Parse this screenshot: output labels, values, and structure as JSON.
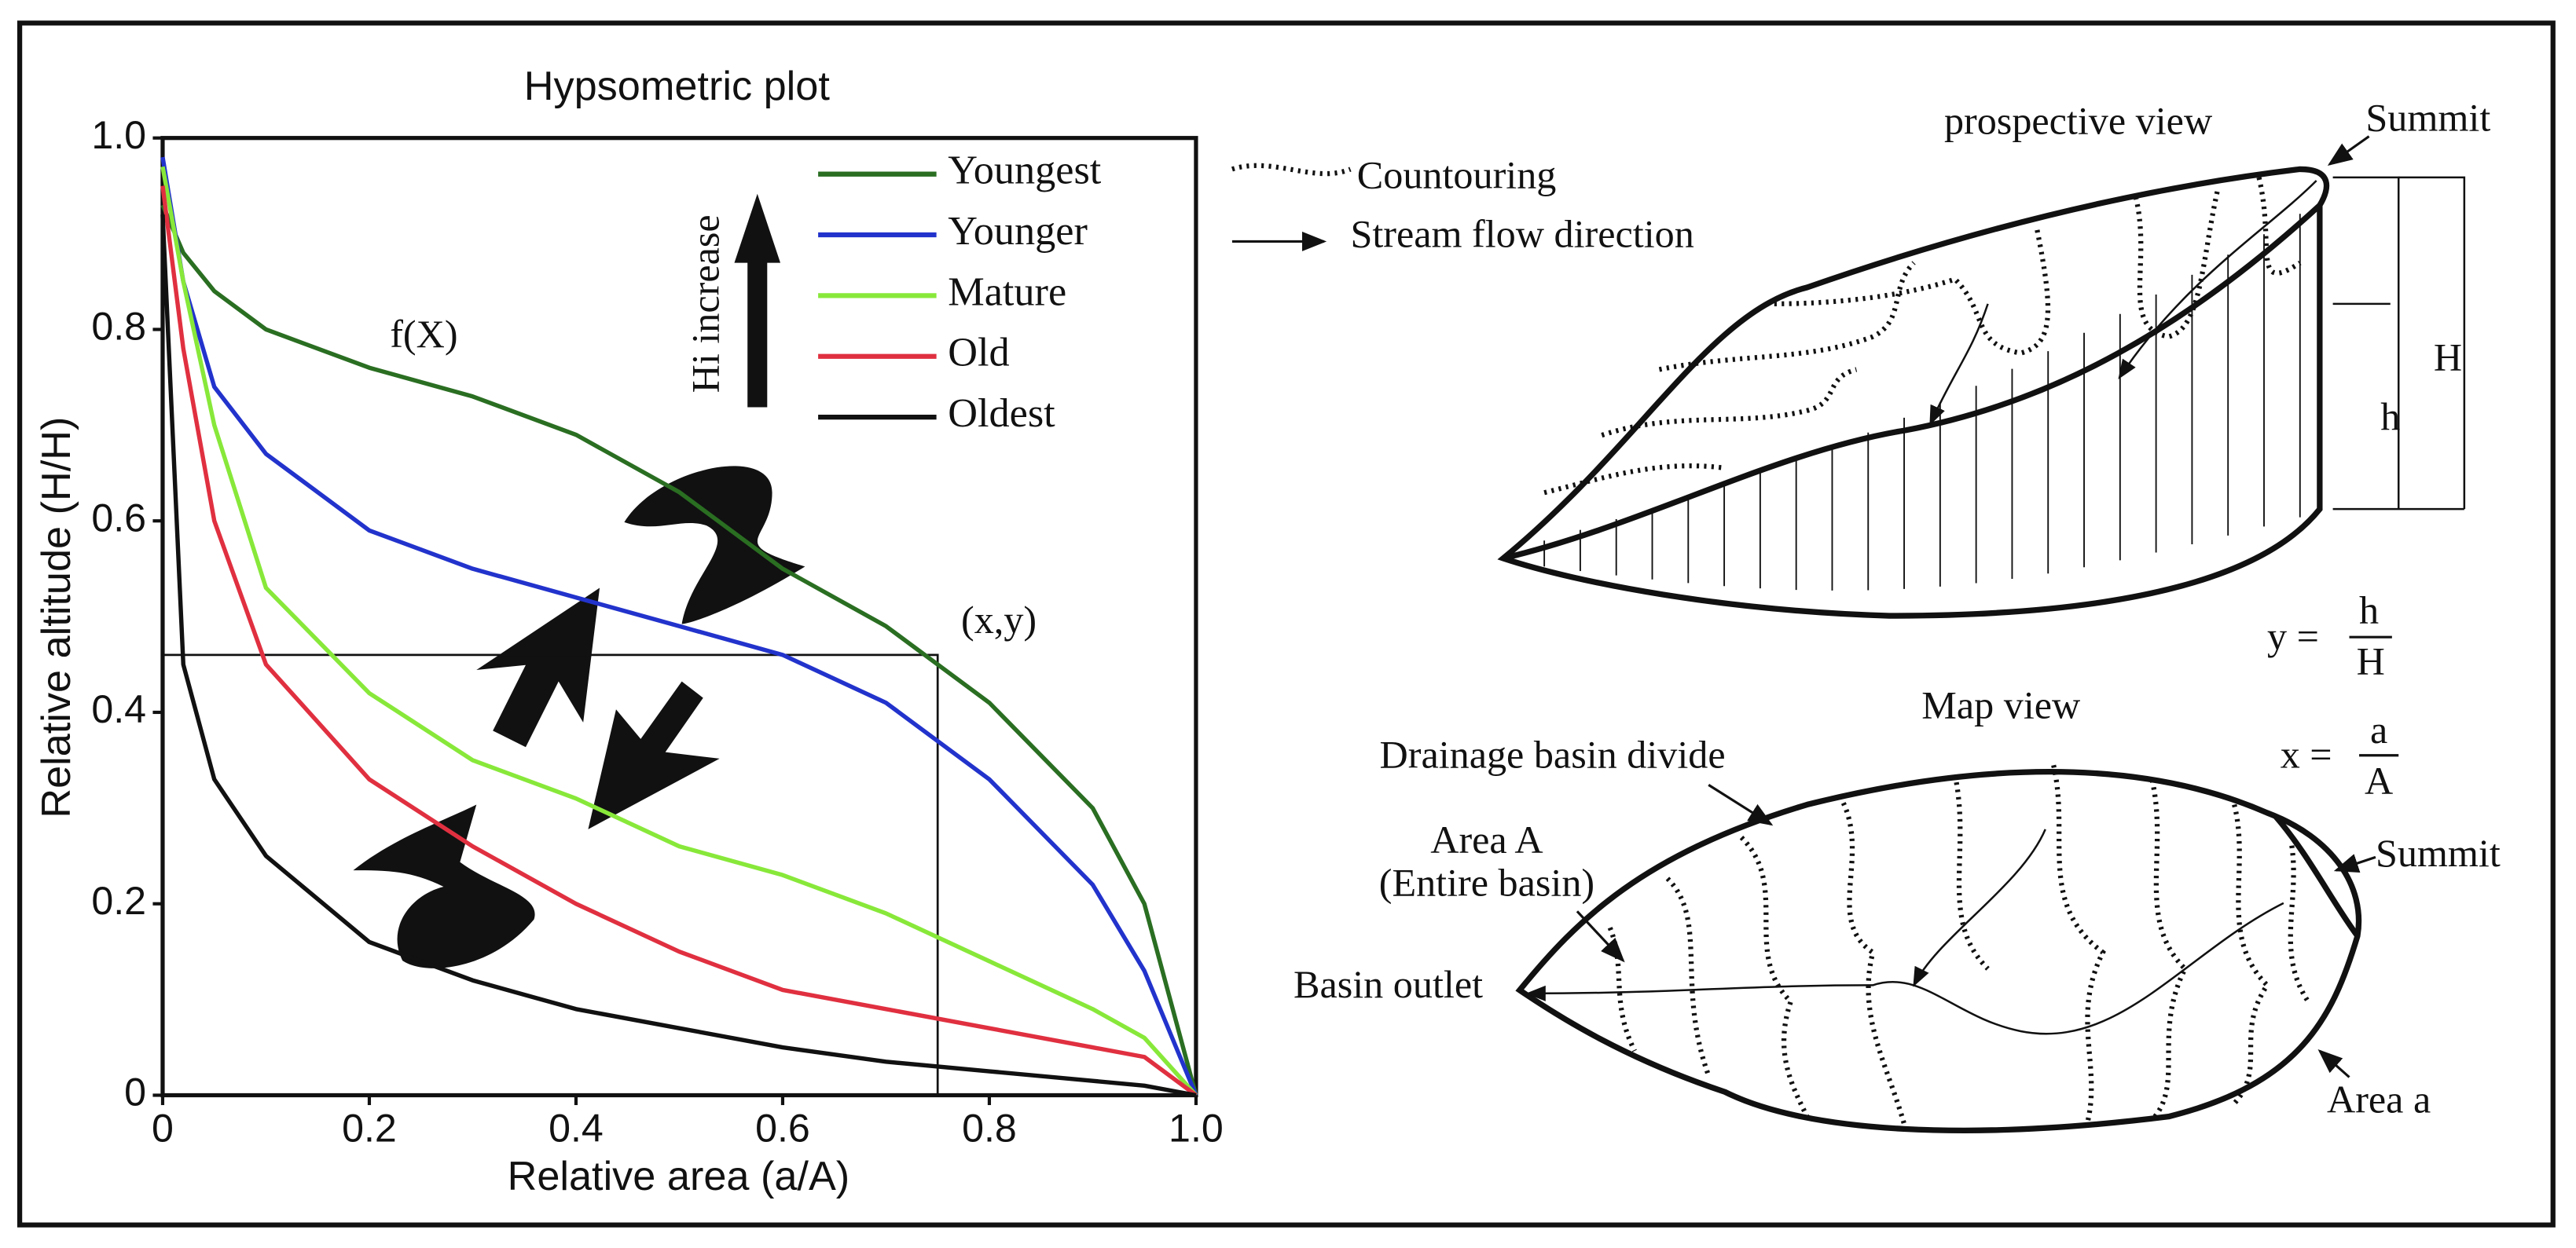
{
  "chart_data": {
    "type": "line",
    "title": "Hypsometric plot",
    "x_label": "Relative area (a/A)",
    "y_label": "Relative altitude (H/H)",
    "x": [
      0,
      0.02,
      0.05,
      0.1,
      0.2,
      0.3,
      0.4,
      0.5,
      0.6,
      0.7,
      0.8,
      0.9,
      0.95,
      1.0
    ],
    "series": [
      {
        "name": "Youngest",
        "color": "#2a6e22",
        "values": [
          0.93,
          0.88,
          0.84,
          0.8,
          0.76,
          0.73,
          0.69,
          0.63,
          0.55,
          0.49,
          0.41,
          0.3,
          0.2,
          0
        ]
      },
      {
        "name": "Younger",
        "color": "#2233cc",
        "values": [
          0.98,
          0.85,
          0.74,
          0.67,
          0.59,
          0.55,
          0.52,
          0.49,
          0.46,
          0.41,
          0.33,
          0.22,
          0.13,
          0
        ]
      },
      {
        "name": "Mature",
        "color": "#88e83a",
        "values": [
          0.97,
          0.85,
          0.7,
          0.53,
          0.42,
          0.35,
          0.31,
          0.26,
          0.23,
          0.19,
          0.14,
          0.09,
          0.06,
          0
        ]
      },
      {
        "name": "Old",
        "color": "#e03040",
        "values": [
          0.95,
          0.78,
          0.6,
          0.45,
          0.33,
          0.26,
          0.2,
          0.15,
          0.11,
          0.09,
          0.07,
          0.05,
          0.04,
          0
        ]
      },
      {
        "name": "Oldest",
        "color": "#111111",
        "values": [
          0.92,
          0.45,
          0.33,
          0.25,
          0.16,
          0.12,
          0.09,
          0.07,
          0.05,
          0.035,
          0.025,
          0.015,
          0.01,
          0
        ]
      }
    ],
    "xlim": [
      0,
      1
    ],
    "ylim": [
      0,
      1
    ],
    "xticks": [
      0,
      0.2,
      0.4,
      0.6,
      0.8,
      {
        "value": 1,
        "label": "1.0"
      }
    ],
    "yticks": [
      0,
      0.2,
      0.4,
      0.6,
      0.8,
      {
        "value": 1,
        "label": "1.0"
      }
    ],
    "legend": "upper right",
    "annotations": {
      "curve_label": "f(X)",
      "arrow_label": "Hi increase",
      "point": {
        "x": 0.75,
        "y": 0.46,
        "label": "(x,y)"
      }
    }
  },
  "diagram": {
    "legend": {
      "contour": "Countouring",
      "stream": "Stream flow direction"
    },
    "perspective": {
      "title": "prospective view",
      "summit": "Summit",
      "H": "H",
      "h": "h"
    },
    "y_formula": {
      "lhs": "y =",
      "num": "h",
      "den": "H"
    },
    "x_formula": {
      "lhs": "x =",
      "num": "a",
      "den": "A"
    },
    "map": {
      "title": "Map view",
      "divide": "Drainage basin divide",
      "area_A": "Area A",
      "entire": "(Entire basin)",
      "outlet": "Basin outlet",
      "summit": "Summit",
      "area_a": "Area a"
    }
  }
}
